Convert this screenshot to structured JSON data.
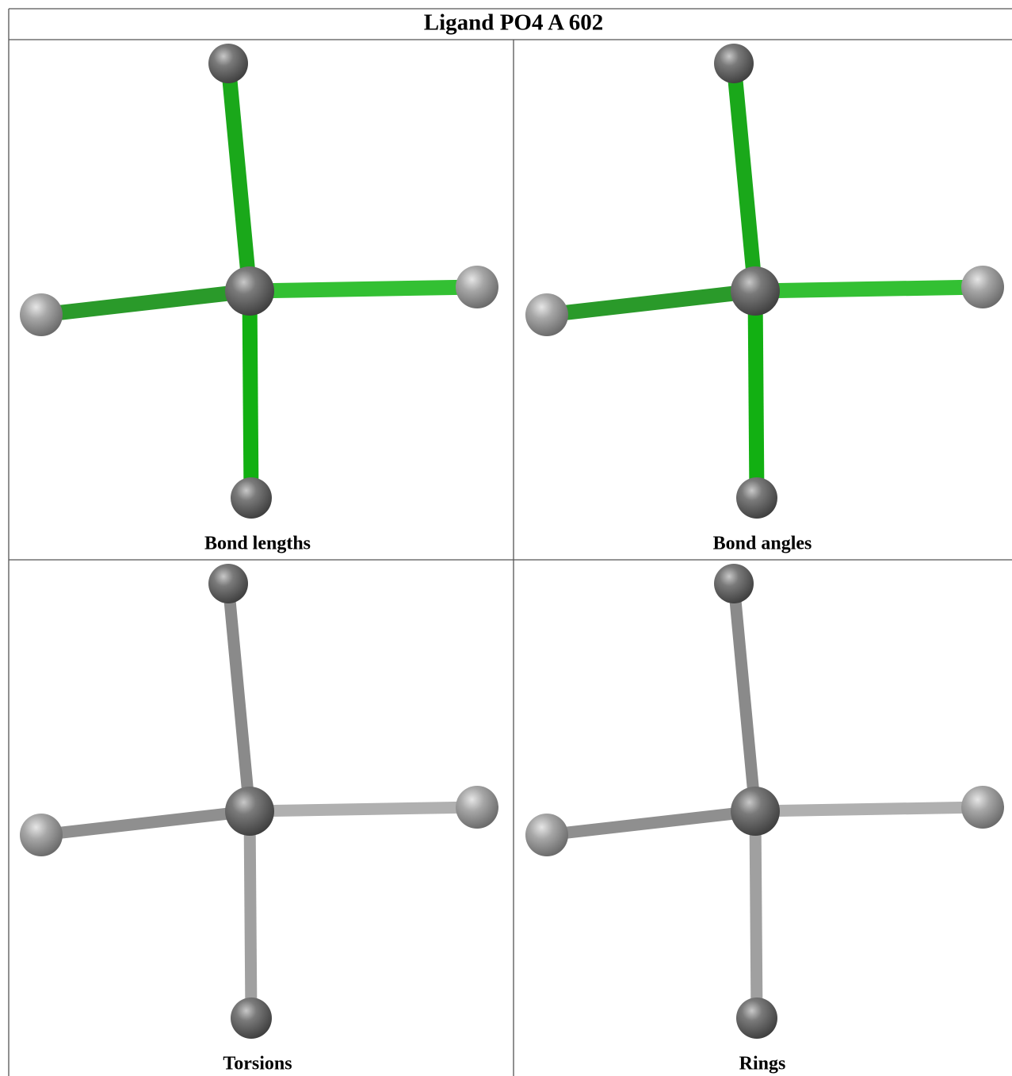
{
  "title": "Ligand PO4 A 602",
  "panels": [
    {
      "caption": "Bond lengths"
    },
    {
      "caption": "Bond angles"
    },
    {
      "caption": "Torsions"
    },
    {
      "caption": "Rings"
    }
  ]
}
